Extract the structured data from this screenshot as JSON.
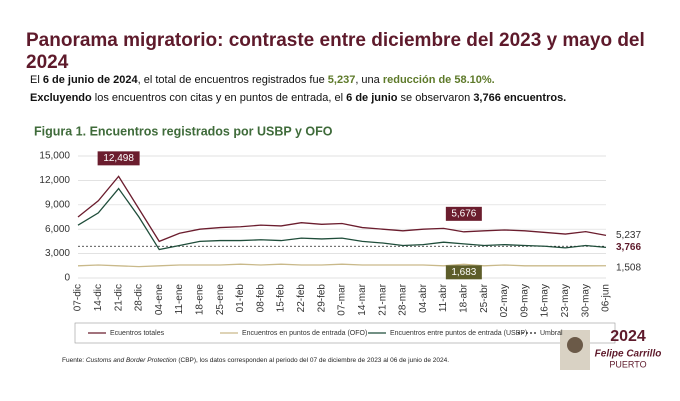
{
  "header": {
    "title": "Panorama migratorio: contraste entre diciembre del 2023 y mayo del 2024"
  },
  "paragraphs": [
    [
      {
        "text": "El "
      },
      {
        "text": "6 de junio de 2024",
        "style": "bold"
      },
      {
        "text": ", el total de encuentros registrados fue "
      },
      {
        "text": "5,237",
        "style": "green"
      },
      {
        "text": ", una "
      },
      {
        "text": "reducción de 58.10%.",
        "style": "green"
      }
    ],
    [
      {
        "text": "Excluyendo",
        "style": "bold"
      },
      {
        "text": " los encuentros con citas y en puntos de entrada, el "
      },
      {
        "text": "6 de junio",
        "style": "bold"
      },
      {
        "text": " se observaron "
      },
      {
        "text": "3,766 encuentros.",
        "style": "bold"
      }
    ]
  ],
  "chart_data": {
    "type": "line",
    "title": "Figura 1. Encuentros registrados por USBP y OFO",
    "categories": [
      "07-dic",
      "14-dic",
      "21-dic",
      "28-dic",
      "04-ene",
      "11-ene",
      "18-ene",
      "25-ene",
      "01-feb",
      "08-feb",
      "15-feb",
      "22-feb",
      "29-feb",
      "07-mar",
      "14-mar",
      "21-mar",
      "28-mar",
      "04-abr",
      "11-abr",
      "18-abr",
      "25-abr",
      "02-may",
      "09-may",
      "16-may",
      "23-may",
      "30-may",
      "06-jun"
    ],
    "series": [
      {
        "name": "Ecuentros totales",
        "color": "#6b1d2e",
        "values": [
          7500,
          9500,
          12498,
          8500,
          4500,
          5500,
          6000,
          6200,
          6300,
          6500,
          6400,
          6800,
          6600,
          6700,
          6200,
          6000,
          5800,
          6000,
          6100,
          5676,
          5800,
          5900,
          5800,
          5600,
          5400,
          5700,
          5237
        ],
        "value_labels": [
          null,
          null,
          "12,498",
          null,
          null,
          null,
          null,
          null,
          null,
          null,
          null,
          null,
          null,
          null,
          null,
          null,
          null,
          null,
          null,
          "5,676",
          null,
          null,
          null,
          null,
          null,
          null,
          "5,237"
        ]
      },
      {
        "name": "Encuentros en puntos de entrada (OFO)",
        "color": "#c9b98a",
        "values": [
          1500,
          1600,
          1500,
          1400,
          1500,
          1600,
          1600,
          1600,
          1700,
          1600,
          1700,
          1600,
          1600,
          1700,
          1600,
          1600,
          1600,
          1600,
          1500,
          1683,
          1500,
          1600,
          1500,
          1500,
          1500,
          1500,
          1508
        ],
        "value_labels": [
          null,
          null,
          null,
          null,
          null,
          null,
          null,
          null,
          null,
          null,
          null,
          null,
          null,
          null,
          null,
          null,
          null,
          null,
          null,
          "1,683",
          null,
          null,
          null,
          null,
          null,
          null,
          "1,508"
        ]
      },
      {
        "name": "Encuentros entre puntos de entrada (USBP)",
        "color": "#1f4d3a",
        "values": [
          6500,
          8000,
          11000,
          7500,
          3500,
          4000,
          4500,
          4600,
          4600,
          4700,
          4600,
          4900,
          4800,
          4900,
          4500,
          4300,
          4000,
          4100,
          4400,
          4200,
          4000,
          4100,
          4000,
          3900,
          3700,
          4000,
          3766
        ],
        "value_labels": [
          null,
          null,
          null,
          null,
          null,
          null,
          null,
          null,
          null,
          null,
          null,
          null,
          null,
          null,
          null,
          null,
          null,
          null,
          null,
          null,
          null,
          null,
          null,
          null,
          null,
          null,
          "3,766"
        ]
      }
    ],
    "threshold": {
      "name": "Umbral",
      "value": 3900
    },
    "ylim": [
      0,
      15000
    ],
    "yticks": [
      0,
      {
        "value": 3000,
        "label": "3,000"
      },
      {
        "value": 6000,
        "label": "6,000"
      },
      {
        "value": 9000,
        "label": "9,000"
      },
      {
        "value": 12000,
        "label": "12,000"
      },
      {
        "value": 15000,
        "label": "15,000"
      }
    ],
    "grid": true
  },
  "footnote": [
    {
      "text": "Fuente: "
    },
    {
      "text": "Customs and Border Protection",
      "style": "italic"
    },
    {
      "text": " (CBP), los datos corresponden al periodo del 07 de diciembre de 2023 al 06 de junio de 2024."
    }
  ],
  "logo": {
    "year": "2024",
    "name": "Felipe Carrillo",
    "city": "PUERTO"
  }
}
